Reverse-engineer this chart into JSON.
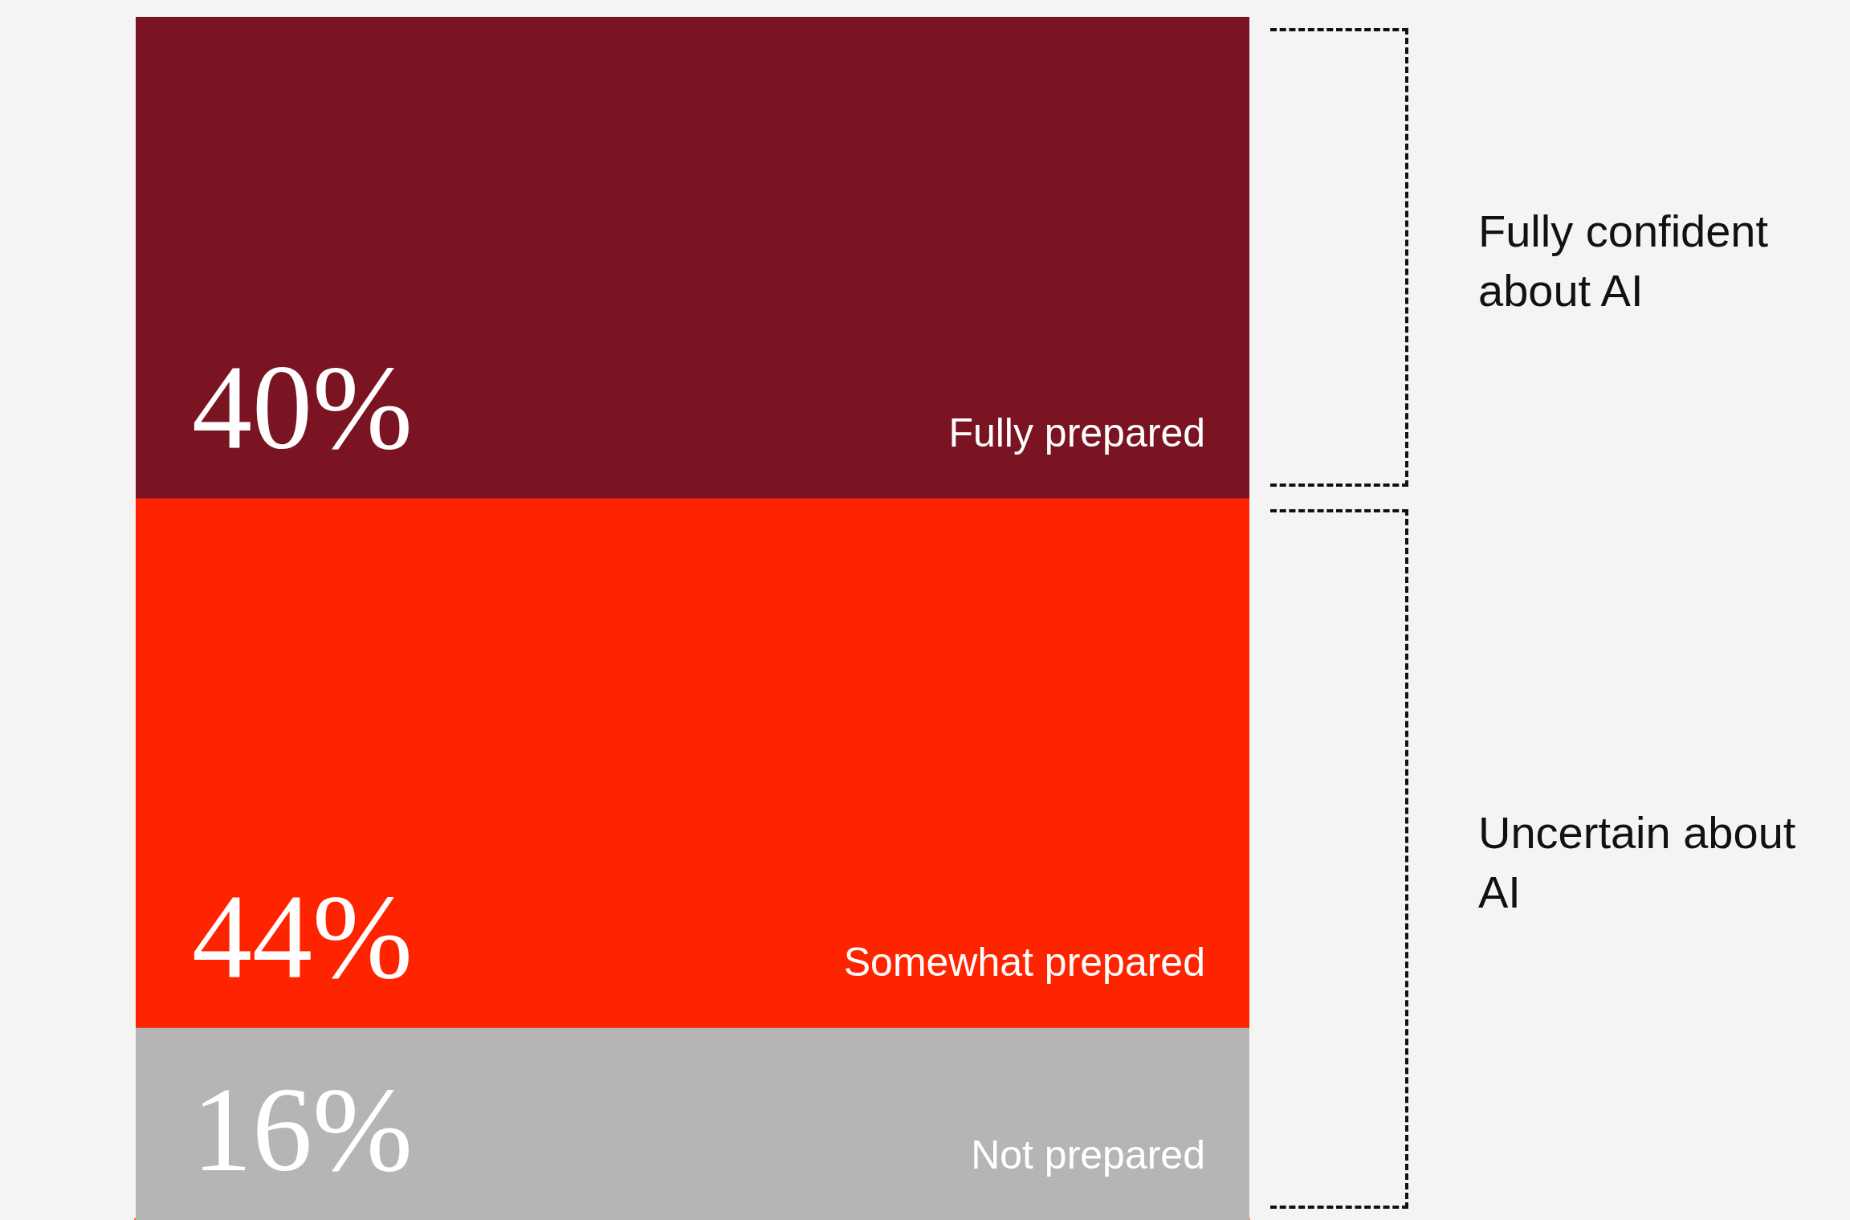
{
  "chart_data": {
    "type": "bar",
    "stacked": true,
    "categories": [
      null
    ],
    "legend": false,
    "grid": false,
    "series": [
      {
        "name": "Not prepared",
        "color": "#b5b5b5",
        "values": [
          16
        ],
        "value_labels": [
          "16%"
        ]
      },
      {
        "name": "Somewhat prepared",
        "color": "#ff2400",
        "values": [
          44
        ],
        "value_labels": [
          "44%"
        ]
      },
      {
        "name": "Fully prepared",
        "color": "#7a1422",
        "values": [
          40
        ],
        "value_labels": [
          "40%"
        ]
      }
    ],
    "annotations": [
      "Fully confident about AI",
      "Uncertain about AI"
    ]
  }
}
